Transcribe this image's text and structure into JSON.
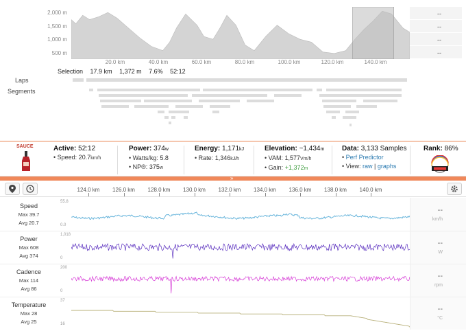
{
  "elevation": {
    "y_ticks": [
      "2,000 m",
      "1,500 m",
      "1,000 m",
      "500 m"
    ],
    "x_ticks": [
      "20.0 km",
      "40.0 km",
      "60.0 km",
      "80.0 km",
      "100.0 km",
      "120.0 km",
      "140.0 km"
    ],
    "right_values": [
      "--",
      "--",
      "--",
      "--"
    ],
    "profile_km": [
      0,
      2,
      5,
      8,
      12,
      16,
      20,
      25,
      30,
      35,
      40,
      43,
      46,
      50,
      55,
      58,
      62,
      65,
      68,
      72,
      76,
      80,
      85,
      90,
      95,
      100,
      105,
      110,
      115,
      120,
      124,
      128,
      132,
      136,
      140,
      145,
      148
    ],
    "profile_m": [
      1700,
      1550,
      1850,
      1700,
      1800,
      1950,
      1750,
      1400,
      1050,
      750,
      600,
      900,
      1400,
      1900,
      1500,
      1100,
      1000,
      1400,
      1850,
      1500,
      800,
      600,
      1100,
      1500,
      1200,
      1000,
      900,
      550,
      500,
      600,
      1000,
      1350,
      1650,
      2000,
      1900,
      1400,
      1250
    ],
    "selection_km": [
      123,
      141
    ]
  },
  "selection": {
    "label": "Selection",
    "distance": "17.9 km",
    "elevation": "1,372 m",
    "grade": "7.6%",
    "time": "52:12"
  },
  "laps_label": "Laps",
  "segments_label": "Segments",
  "stats": {
    "logo_text": "SAUCE",
    "active": {
      "label": "Active:",
      "value": "52:12",
      "speed_label": "• Speed:",
      "speed": "20.7",
      "speed_unit": "km/h"
    },
    "power": {
      "label": "Power:",
      "value": "374",
      "unit": "w",
      "wkg_label": "• Watts/kg:",
      "wkg": "5.8",
      "np_label": "• NP®:",
      "np": "375",
      "np_unit": "w"
    },
    "energy": {
      "label": "Energy:",
      "value": "1,171",
      "unit": "kJ",
      "rate_label": "• Rate:",
      "rate": "1,346",
      "rate_unit": "kJ/h"
    },
    "elevation": {
      "label": "Elevation:",
      "value": "~1,434",
      "unit": "m",
      "vam_label": "• VAM:",
      "vam": "1,577",
      "vam_unit": "Vm/h",
      "gain_label": "• Gain:",
      "gain": "+1,372",
      "gain_unit": "m"
    },
    "data": {
      "label": "Data:",
      "value": "3,133 Samples",
      "perf": "Perf Predictor",
      "view_label": "• View:",
      "raw": "raw",
      "sep": "|",
      "graphs": "graphs"
    },
    "rank": {
      "label": "Rank:",
      "value": "86%"
    }
  },
  "toolbar": {
    "pin_icon": "map-pin-icon",
    "clock_icon": "clock-icon",
    "gear_icon": "gear-icon",
    "ticks": [
      "124.0 km",
      "126.0 km",
      "128.0 km",
      "130.0 km",
      "132.0 km",
      "134.0 km",
      "136.0 km",
      "138.0 km",
      "140.0 km"
    ]
  },
  "channels": [
    {
      "title": "Speed",
      "max": "Max 39.7",
      "avg": "Avg 20.7",
      "axis_top": "55.8",
      "axis_bottom": "0.0",
      "right_value": "--",
      "right_unit": "km/h",
      "color": "#5aaed8"
    },
    {
      "title": "Power",
      "max": "Max 608",
      "avg": "Avg 374",
      "axis_top": "1,018",
      "axis_bottom": "0",
      "right_value": "--",
      "right_unit": "W",
      "color": "#5a2fbf"
    },
    {
      "title": "Cadence",
      "max": "Max 114",
      "avg": "Avg 86",
      "axis_top": "200",
      "axis_bottom": "0",
      "right_value": "--",
      "right_unit": "rpm",
      "color": "#d63bd6"
    },
    {
      "title": "Temperature",
      "max": "Max 28",
      "avg": "Avg 25",
      "axis_top": "37",
      "axis_bottom": "16",
      "right_value": "--",
      "right_unit": "°C",
      "color": "#b8b07a"
    }
  ]
}
